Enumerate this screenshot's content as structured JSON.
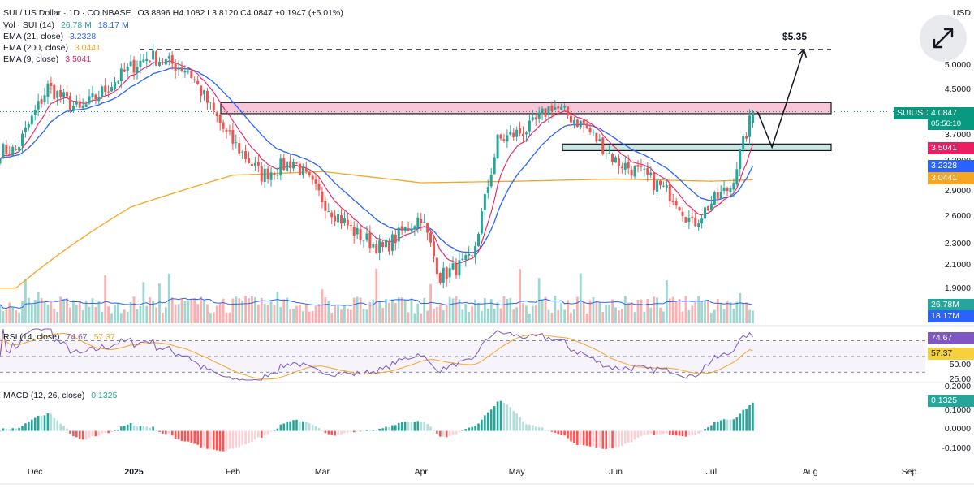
{
  "legend": {
    "title": "SUI / US Dollar · 1D · COINBASE",
    "ohlc": "O3.8896  H4.1082  L3.8120  C4.0847  +0.1947 (+5.01%)",
    "vol_label": "Vol · SUI (14)",
    "vol_a": "26.78 M",
    "vol_b": "18.17 M",
    "ema21_label": "EMA (21, close)",
    "ema21_value": "3.2328",
    "ema200_label": "EMA (200, close)",
    "ema200_value": "3.0441",
    "ema9_label": "EMA (9, close)",
    "ema9_value": "3.5041",
    "rsi_label": "RSI (14, close)",
    "rsi_a": "74.67",
    "rsi_b": "57.37",
    "macd_label": "MACD (12, 26, close)",
    "macd_value": "0.1325"
  },
  "target_label": "$5.35",
  "currency": "USD",
  "price_axis": [
    "5.0000",
    "4.5000",
    "3.7000",
    "3.3000",
    "2.9000",
    "2.6000",
    "2.3000",
    "2.1000",
    "1.9000"
  ],
  "price_tags": {
    "symbol": "SUIUSD",
    "last": "4.0847",
    "countdown": "05:56:10",
    "ema9": "3.5041",
    "ema21": "3.2328",
    "ema200": "3.0441",
    "vol_a": "26.78M",
    "vol_b": "18.17M",
    "rsi_a": "74.67",
    "rsi_b": "57.37",
    "macd": "0.1325"
  },
  "rsi_axis": [
    "50.00",
    "25.00"
  ],
  "macd_axis": [
    "0.2000",
    "0.1000",
    "0.0000",
    "-0.1000"
  ],
  "x_axis": [
    "Dec",
    "2025",
    "Feb",
    "Mar",
    "Apr",
    "May",
    "Jun",
    "Jul",
    "Aug",
    "Sep"
  ],
  "colors": {
    "up": "#26a69a",
    "down": "#ef5350",
    "ema21": "#2962ff",
    "ema200": "#f5a623",
    "ema9": "#e91e63",
    "rsi": "#7e57c2",
    "resistance_zone": "#f8bbd0",
    "support_zone": "#a7d7d2"
  },
  "chart_data": {
    "type": "candlestick",
    "symbol": "SUI / US Dollar",
    "interval": "1D",
    "exchange": "COINBASE",
    "ohlc_last": {
      "open": 3.8896,
      "high": 4.1082,
      "low": 3.812,
      "close": 4.0847,
      "change": 0.1947,
      "change_pct": 5.01
    },
    "y_scale": "log",
    "close_path": [
      [
        "Nov 25",
        3.45
      ],
      [
        "Dec 5",
        4.55
      ],
      [
        "Dec 15",
        4.1
      ],
      [
        "Dec 31",
        4.95
      ],
      [
        "Jan 6",
        5.2
      ],
      [
        "Jan 18",
        4.9
      ],
      [
        "Jan 30",
        3.7
      ],
      [
        "Feb 10",
        3.1
      ],
      [
        "Feb 20",
        3.3
      ],
      [
        "Mar 3",
        2.7
      ],
      [
        "Mar 12",
        2.4
      ],
      [
        "Mar 20",
        2.25
      ],
      [
        "Apr 1",
        2.6
      ],
      [
        "Apr 7",
        2.0
      ],
      [
        "Apr 17",
        2.15
      ],
      [
        "Apr 25",
        3.6
      ],
      [
        "May 5",
        3.8
      ],
      [
        "May 12",
        4.2
      ],
      [
        "May 22",
        3.85
      ],
      [
        "Jun 1",
        3.3
      ],
      [
        "Jun 10",
        3.1
      ],
      [
        "Jun 20",
        2.8
      ],
      [
        "Jun 25",
        2.5
      ],
      [
        "Jul 1",
        2.75
      ],
      [
        "Jul 7",
        2.95
      ],
      [
        "Jul 10",
        3.4
      ],
      [
        "Jul 14",
        4.08
      ]
    ],
    "ema200_path": [
      [
        "Nov 25",
        1.9
      ],
      [
        "Dec 31",
        2.7
      ],
      [
        "Feb 1",
        3.1
      ],
      [
        "Mar 1",
        3.15
      ],
      [
        "Apr 1",
        3.0
      ],
      [
        "May 1",
        3.02
      ],
      [
        "Jun 1",
        3.05
      ],
      [
        "Jul 1",
        3.02
      ],
      [
        "Jul 14",
        3.04
      ]
    ],
    "resistance_zone": [
      4.05,
      4.25
    ],
    "support_zone": [
      3.45,
      3.55
    ],
    "projection": [
      [
        "Jul 14",
        4.08
      ],
      [
        "Jul 20",
        3.5
      ],
      [
        "Jul 30",
        5.35
      ]
    ],
    "target": 5.35,
    "volume_last": {
      "value_m": 26.78,
      "ma_m": 18.17
    },
    "rsi": {
      "value": 74.67,
      "ma": 57.37,
      "levels": [
        70,
        50,
        30
      ],
      "range": [
        20,
        85
      ]
    },
    "macd": {
      "histogram_last": 0.1325,
      "range": [
        -0.15,
        0.2
      ]
    }
  }
}
